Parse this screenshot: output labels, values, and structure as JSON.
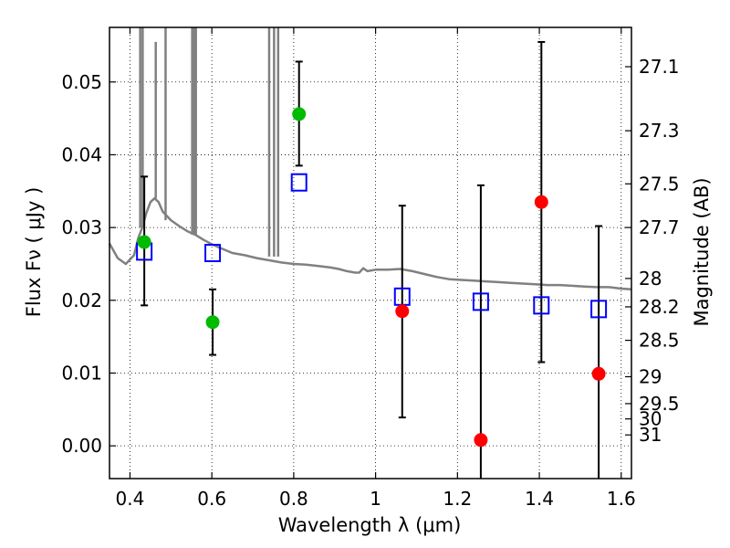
{
  "chart_data": {
    "type": "scatter",
    "title": "",
    "xlabel": "Wavelength  λ (μm)",
    "ylabel": "Flux  Fν  ( μJy )",
    "y2label": "Magnitude (AB)",
    "xlim": [
      0.35,
      1.625
    ],
    "ylim": [
      -0.0045,
      0.0575
    ],
    "grid": true,
    "x_ticks": [
      0.4,
      0.6,
      0.8,
      1.0,
      1.2,
      1.4,
      1.6
    ],
    "x_tick_labels": [
      "0.4",
      "0.6",
      "0.8",
      "1",
      "1.2",
      "1.4",
      "1.6"
    ],
    "y_ticks": [
      0.0,
      0.01,
      0.02,
      0.03,
      0.04,
      0.05
    ],
    "y_tick_labels": [
      "0.00",
      "0.01",
      "0.02",
      "0.03",
      "0.04",
      "0.05"
    ],
    "y2_ticks": [
      {
        "label": "27.1",
        "flux": 0.0521
      },
      {
        "label": "27.3",
        "flux": 0.0433
      },
      {
        "label": "27.5",
        "flux": 0.036
      },
      {
        "label": "27.7",
        "flux": 0.03
      },
      {
        "label": "28",
        "flux": 0.023
      },
      {
        "label": "28.2",
        "flux": 0.0191
      },
      {
        "label": "28.5",
        "flux": 0.0145
      },
      {
        "label": "29",
        "flux": 0.0095
      },
      {
        "label": "29.5",
        "flux": 0.0058
      },
      {
        "label": "30",
        "flux": 0.0037
      },
      {
        "label": "31",
        "flux": 0.0015
      }
    ],
    "series": [
      {
        "type": "line",
        "color": "#808080",
        "points": [
          [
            0.35,
            0.0278
          ],
          [
            0.37,
            0.0258
          ],
          [
            0.39,
            0.025
          ],
          [
            0.41,
            0.0262
          ],
          [
            0.42,
            0.0285
          ],
          [
            0.43,
            0.03
          ],
          [
            0.44,
            0.032
          ],
          [
            0.45,
            0.0335
          ],
          [
            0.46,
            0.034
          ],
          [
            0.47,
            0.0335
          ],
          [
            0.48,
            0.0322
          ],
          [
            0.5,
            0.031
          ],
          [
            0.52,
            0.0302
          ],
          [
            0.54,
            0.0295
          ],
          [
            0.56,
            0.029
          ],
          [
            0.58,
            0.0283
          ],
          [
            0.6,
            0.0277
          ],
          [
            0.62,
            0.0272
          ],
          [
            0.65,
            0.0265
          ],
          [
            0.68,
            0.0262
          ],
          [
            0.71,
            0.0258
          ],
          [
            0.74,
            0.0255
          ],
          [
            0.77,
            0.0252
          ],
          [
            0.8,
            0.025
          ],
          [
            0.83,
            0.0249
          ],
          [
            0.86,
            0.0247
          ],
          [
            0.89,
            0.0245
          ],
          [
            0.91,
            0.0243
          ],
          [
            0.93,
            0.024
          ],
          [
            0.95,
            0.0238
          ],
          [
            0.96,
            0.0238
          ],
          [
            0.97,
            0.0244
          ],
          [
            0.98,
            0.024
          ],
          [
            1.0,
            0.0242
          ],
          [
            1.03,
            0.0242
          ],
          [
            1.06,
            0.0243
          ],
          [
            1.09,
            0.024
          ],
          [
            1.12,
            0.0236
          ],
          [
            1.15,
            0.0232
          ],
          [
            1.18,
            0.0229
          ],
          [
            1.21,
            0.0228
          ],
          [
            1.24,
            0.0227
          ],
          [
            1.27,
            0.0226
          ],
          [
            1.3,
            0.0225
          ],
          [
            1.33,
            0.0224
          ],
          [
            1.36,
            0.0223
          ],
          [
            1.39,
            0.0222
          ],
          [
            1.42,
            0.0221
          ],
          [
            1.45,
            0.0221
          ],
          [
            1.48,
            0.022
          ],
          [
            1.51,
            0.0219
          ],
          [
            1.54,
            0.0218
          ],
          [
            1.57,
            0.0218
          ],
          [
            1.6,
            0.0216
          ],
          [
            1.625,
            0.0215
          ]
        ],
        "spikes": [
          {
            "x": 0.425,
            "y_from": 0.03,
            "y_to": 0.0575
          },
          {
            "x": 0.431,
            "y_from": 0.03,
            "y_to": 0.0575
          },
          {
            "x": 0.463,
            "y_from": 0.034,
            "y_to": 0.0555
          },
          {
            "x": 0.487,
            "y_from": 0.031,
            "y_to": 0.0575
          },
          {
            "x": 0.552,
            "y_from": 0.029,
            "y_to": 0.0575
          },
          {
            "x": 0.557,
            "y_from": 0.029,
            "y_to": 0.0575
          },
          {
            "x": 0.561,
            "y_from": 0.029,
            "y_to": 0.0575
          },
          {
            "x": 0.74,
            "y_from": 0.026,
            "y_to": 0.0575
          },
          {
            "x": 0.752,
            "y_from": 0.026,
            "y_to": 0.0575
          },
          {
            "x": 0.762,
            "y_from": 0.026,
            "y_to": 0.0575
          }
        ]
      },
      {
        "type": "open_square",
        "color": "#0000ff",
        "points": [
          [
            0.435,
            0.0267
          ],
          [
            0.602,
            0.0265
          ],
          [
            0.813,
            0.0362
          ],
          [
            1.065,
            0.0205
          ],
          [
            1.257,
            0.0198
          ],
          [
            1.405,
            0.0193
          ],
          [
            1.545,
            0.0188
          ]
        ]
      },
      {
        "type": "filled_circle",
        "color": "#00bb00",
        "points": [
          {
            "x": 0.435,
            "y": 0.028,
            "err_low": 0.0087,
            "err_high": 0.009
          },
          {
            "x": 0.602,
            "y": 0.017,
            "err_low": 0.0045,
            "err_high": 0.0045
          },
          {
            "x": 0.813,
            "y": 0.0456,
            "err_low": 0.0071,
            "err_high": 0.0072
          }
        ]
      },
      {
        "type": "filled_circle",
        "color": "#ff0000",
        "points": [
          {
            "x": 1.065,
            "y": 0.0185,
            "err_low": 0.0146,
            "err_high": 0.0145
          },
          {
            "x": 1.257,
            "y": 0.0008,
            "err_low": 0.006,
            "err_high": 0.035
          },
          {
            "x": 1.405,
            "y": 0.0335,
            "err_low": 0.022,
            "err_high": 0.022
          },
          {
            "x": 1.545,
            "y": 0.0099,
            "err_low": 0.015,
            "err_high": 0.0203
          }
        ]
      }
    ]
  }
}
